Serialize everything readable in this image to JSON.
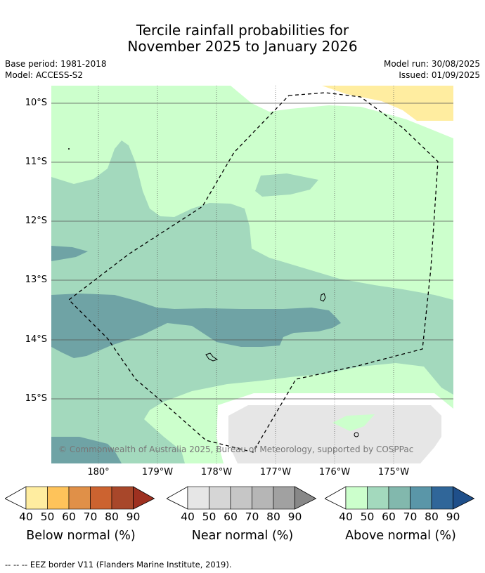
{
  "title": {
    "line1": "Tercile rainfall probabilities for",
    "line2": "November 2025 to January 2026"
  },
  "meta": {
    "base_period": "Base period: 1981-2018",
    "model": "Model: ACCESS-S2",
    "model_run": "Model run: 30/08/2025",
    "issued": "Issued: 01/09/2025"
  },
  "map": {
    "copyright": "© Commonwealth of Australia 2025, Bureau of Meteorology, supported by COSPPac",
    "lat_labels": [
      "10°S",
      "11°S",
      "12°S",
      "13°S",
      "14°S",
      "15°S"
    ],
    "lon_labels": [
      "180°",
      "179°W",
      "178°W",
      "177°W",
      "176°W",
      "175°W"
    ]
  },
  "colorbars": [
    {
      "title": "Below normal (%)",
      "ticks": [
        "40",
        "50",
        "60",
        "70",
        "80",
        "90"
      ],
      "colors": [
        "#ffeda0",
        "#fec35a",
        "#e09048",
        "#cc6330",
        "#a8472a",
        "#9e3020"
      ]
    },
    {
      "title": "Near normal (%)",
      "ticks": [
        "40",
        "50",
        "60",
        "70",
        "80",
        "90"
      ],
      "colors": [
        "#e6e6e6",
        "#d6d6d6",
        "#c6c6c6",
        "#b6b6b6",
        "#a1a1a1",
        "#888888"
      ]
    },
    {
      "title": "Above normal (%)",
      "ticks": [
        "40",
        "50",
        "60",
        "70",
        "80",
        "90"
      ],
      "colors": [
        "#ccffcc",
        "#a3d9bd",
        "#82b8ad",
        "#5a96a8",
        "#306699",
        "#1f4f8a"
      ]
    }
  ],
  "footnote": "--  --  -- EEZ border V11 (Flanders Marine Institute, 2019)."
}
